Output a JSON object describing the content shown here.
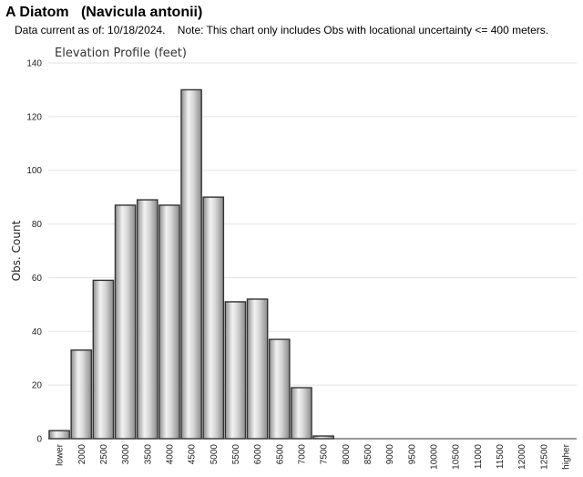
{
  "header": {
    "title": "A Diatom   (Navicula antonii)",
    "note": "Data current as of: 10/18/2024.    Note: This chart only includes Obs with locational uncertainty <= 400 meters."
  },
  "chart_data": {
    "type": "bar",
    "title": "Elevation Profile (feet)",
    "xlabel": "",
    "ylabel": "Obs. Count",
    "ylim": [
      0,
      140
    ],
    "yticks": [
      0,
      20,
      40,
      60,
      80,
      100,
      120,
      140
    ],
    "grid": true,
    "categories": [
      "lower",
      "2000",
      "2500",
      "3000",
      "3500",
      "4000",
      "4500",
      "5000",
      "5500",
      "6000",
      "6500",
      "7000",
      "7500",
      "8000",
      "8500",
      "9000",
      "9500",
      "10000",
      "10500",
      "11000",
      "11500",
      "12000",
      "12500",
      "higher"
    ],
    "values": [
      3,
      33,
      59,
      87,
      89,
      87,
      130,
      90,
      51,
      52,
      37,
      19,
      1,
      0,
      0,
      0,
      0,
      0,
      0,
      0,
      0,
      0,
      0,
      0
    ],
    "bar_color": "#c8c8c8",
    "bar_edge_color": "#333333"
  }
}
